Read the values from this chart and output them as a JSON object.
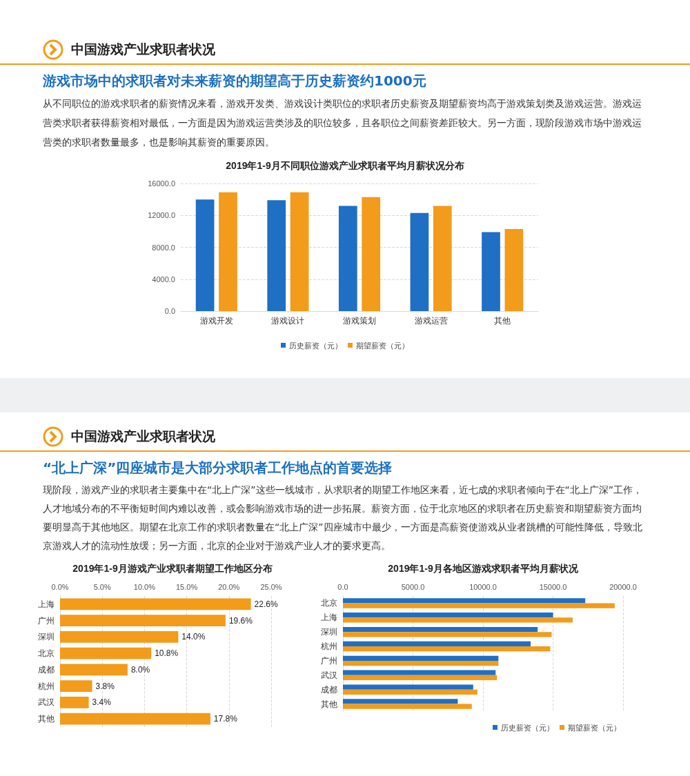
{
  "chart_data": [
    {
      "type": "bar",
      "title": "2019年1-9月不同职位游戏产业求职者平均月薪状况分布",
      "annotations": [
        "中国游戏产业求职者状况",
        "游戏市场中的求职者对未来薪资的期望高于历史薪资约1000元",
        "从不同职位的游戏求职者的薪资情况来看，游戏开发类、游戏设计类职位的求职者历史薪资及期望薪资均高于游戏策划类及游戏运营。游戏运营类求职者获得薪资相对最低，一方面是因为游戏运营类涉及的职位较多，且各职位之间薪资差距较大。另一方面，现阶段游戏市场中游戏运营类的求职者数量最多，也是影响其薪资的重要原因。"
      ],
      "categories": [
        "游戏开发",
        "游戏设计",
        "游戏策划",
        "游戏运营",
        "其他"
      ],
      "series": [
        {
          "name": "历史薪资（元）",
          "color": "#1f6fc4",
          "values": [
            14000,
            13900,
            13200,
            12300,
            9900
          ]
        },
        {
          "name": "期望薪资（元）",
          "color": "#f39b1a",
          "values": [
            14900,
            14900,
            14300,
            13200,
            10300
          ]
        }
      ],
      "ylim": [
        0,
        16000
      ],
      "yticks": [
        {
          "value": 0,
          "label": "0.0"
        },
        {
          "value": 4000,
          "label": "4000.0"
        },
        {
          "value": 8000,
          "label": "8000.0"
        },
        {
          "value": 12000,
          "label": "12000.0"
        },
        {
          "value": 16000,
          "label": "16000.0"
        }
      ],
      "grid": "y",
      "legend": "bottom"
    },
    {
      "type": "bar",
      "orientation": "horizontal",
      "title": "2019年1-9月游戏产业求职者期望工作地区分布",
      "annotations": [
        "中国游戏产业求职者状况",
        "“北上广深”四座城市是大部分求职者工作地点的首要选择",
        "现阶段，游戏产业的求职者主要集中在“北上广深”这些一线城市，从求职者的期望工作地区来看，近七成的求职者倾向于在“北上广深”工作，人才地域分布的不平衡短时间内难以改善，或会影响游戏市场的进一步拓展。薪资方面，位于北京地区的求职者在历史薪资和期望薪资方面均要明显高于其他地区。期望在北京工作的求职者数量在“北上广深”四座城市中最少，一方面是高薪资使游戏从业者跳槽的可能性降低，导致北京游戏人才的流动性放缓；另一方面，北京的企业对于游戏产业人才的要求更高。"
      ],
      "categories": [
        "上海",
        "广州",
        "深圳",
        "北京",
        "成都",
        "杭州",
        "武汉",
        "其他"
      ],
      "values": [
        22.6,
        19.6,
        14.0,
        10.8,
        8.0,
        3.8,
        3.4,
        17.8
      ],
      "color": "#f39b1a",
      "value_labels": [
        "22.6%",
        "19.6%",
        "14.0%",
        "10.8%",
        "8.0%",
        "3.8%",
        "3.4%",
        "17.8%"
      ],
      "xlim": [
        0,
        25
      ],
      "xticks": [
        {
          "value": 0,
          "label": "0.0%"
        },
        {
          "value": 5,
          "label": "5.0%"
        },
        {
          "value": 10,
          "label": "10.0%"
        },
        {
          "value": 15,
          "label": "15.0%"
        },
        {
          "value": 20,
          "label": "20.0%"
        },
        {
          "value": 25,
          "label": "25.0%"
        }
      ],
      "grid": "x"
    },
    {
      "type": "bar",
      "orientation": "horizontal",
      "title": "2019年1-9月各地区游戏求职者平均月薪状况",
      "categories": [
        "北京",
        "上海",
        "深圳",
        "杭州",
        "广州",
        "武汉",
        "成都",
        "其他"
      ],
      "series": [
        {
          "name": "历史薪资（元）",
          "color": "#1f6fc4",
          "values": [
            17300,
            15000,
            13900,
            13400,
            11100,
            10900,
            9300,
            8200
          ]
        },
        {
          "name": "期望薪资（元）",
          "color": "#f39b1a",
          "values": [
            19400,
            16400,
            14900,
            14800,
            11100,
            11000,
            9600,
            9200
          ]
        }
      ],
      "xlim": [
        0,
        20000
      ],
      "xticks": [
        {
          "value": 0,
          "label": "0.0"
        },
        {
          "value": 5000,
          "label": "5000.0"
        },
        {
          "value": 10000,
          "label": "10000.0"
        },
        {
          "value": 15000,
          "label": "15000.0"
        },
        {
          "value": 20000,
          "label": "20000.0"
        }
      ],
      "grid": "x",
      "legend": "bottom right"
    }
  ]
}
